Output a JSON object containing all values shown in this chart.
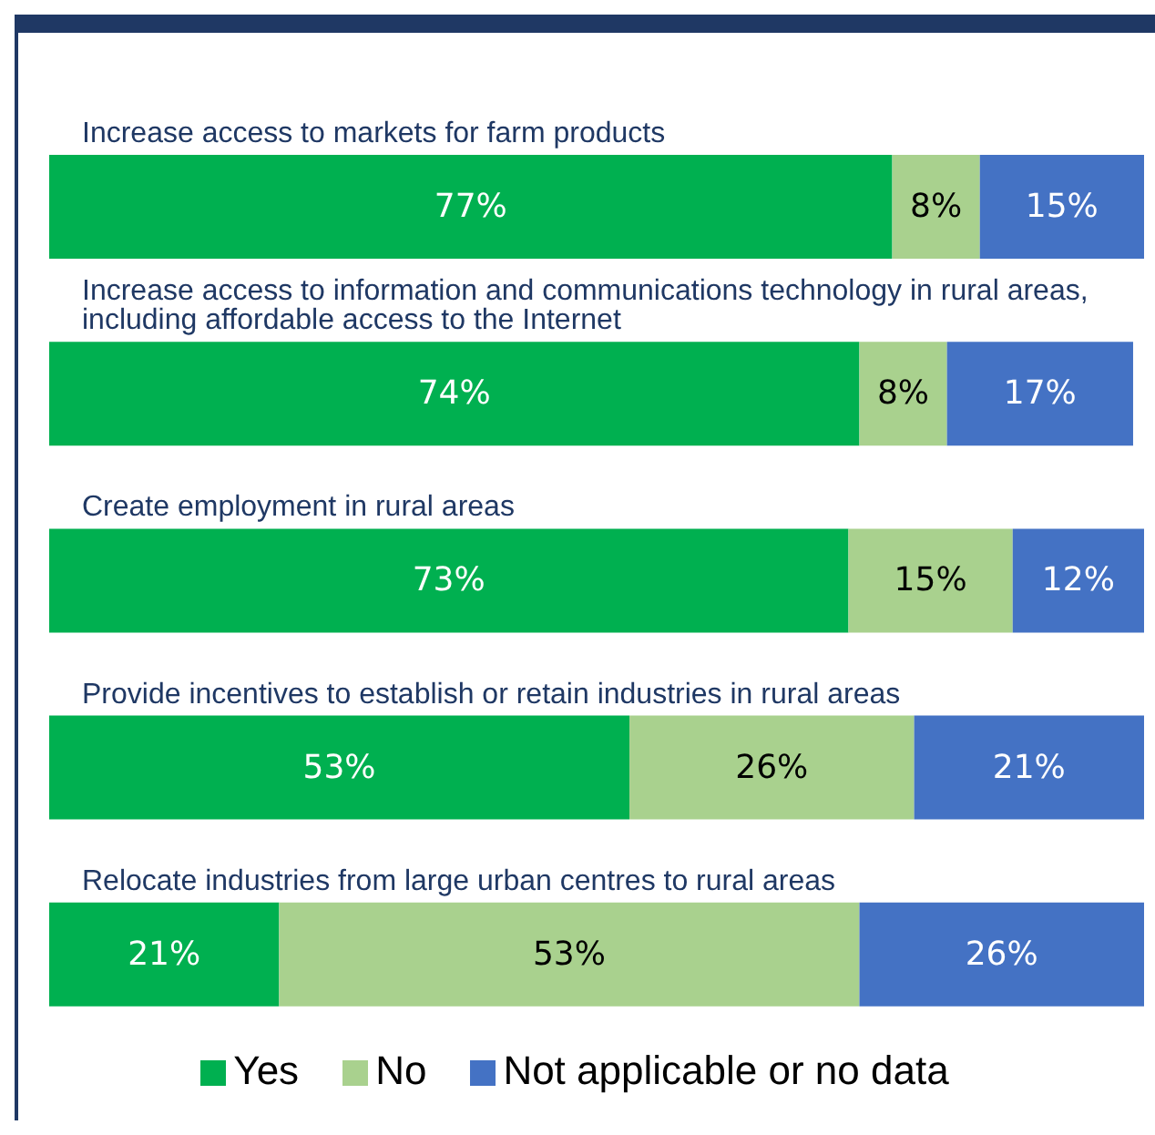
{
  "chart_data": {
    "type": "bar",
    "orientation": "horizontal",
    "stacked": true,
    "categories": [
      "Increase access to markets for farm products",
      "Increase access to information and communications technology in rural areas, including affordable access to the Internet",
      "Create employment in rural areas",
      "Provide incentives to establish or retain industries in rural areas",
      "Relocate industries from large urban centres to rural areas"
    ],
    "series": [
      {
        "name": "Yes",
        "color": "#00b050",
        "values": [
          77,
          74,
          73,
          53,
          21
        ],
        "value_labels": [
          "77%",
          "74%",
          "73%",
          "53%",
          "21%"
        ]
      },
      {
        "name": "No",
        "color": "#a9d18e",
        "values": [
          8,
          8,
          15,
          26,
          53
        ],
        "value_labels": [
          "8%",
          "8%",
          "15%",
          "26%",
          "53%"
        ]
      },
      {
        "name": "Not applicable or no data",
        "color": "#4472c4",
        "values": [
          15,
          17,
          12,
          21,
          26
        ],
        "value_labels": [
          "15%",
          "17%",
          "12%",
          "21%",
          "26%"
        ]
      }
    ],
    "legend": "bottom",
    "grid": false
  }
}
